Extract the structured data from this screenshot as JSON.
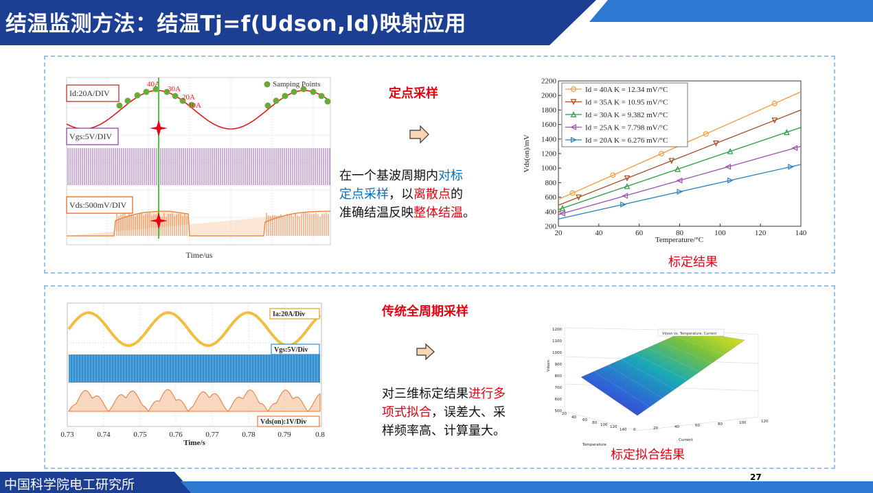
{
  "header": {
    "title": "结温监测方法：结温Tj=f(Udson,Id)映射应用",
    "bg_color": "#1c3f94",
    "accent_color": "#2d78d0"
  },
  "top_section": {
    "title": "定点采样",
    "waveform": {
      "id_label": "Id:20A/DIV",
      "vgs_label": "Vgs:5V/DIV",
      "vds_label": "Vds:500mV/DIV",
      "legend": "Samping Points",
      "annotations": [
        "40A",
        "30A",
        "20A",
        "10A"
      ],
      "xlabel": "Time/us"
    },
    "description": {
      "part1": "在一个基波周期内",
      "part2": "对标",
      "part3": "定点采样",
      "part4": "，以",
      "part5": "离散点",
      "part6": "的",
      "part7": "准确结温反映",
      "part8": "整体结温",
      "part9": "。"
    },
    "caption": "标定结果"
  },
  "bottom_section": {
    "title": "传统全周期采样",
    "waveform": {
      "ia_label": "Ia:20A/Div",
      "vgs_label": "Vgs:5V/Div",
      "vds_label": "Vds(on):1V/Div",
      "xticks": [
        "0.73",
        "0.74",
        "0.75",
        "0.76",
        "0.77",
        "0.78",
        "0.79",
        "0.8"
      ],
      "xlabel": "Time/s"
    },
    "description": {
      "part1": "对三维标定结果",
      "part2": "进行多",
      "part3": "项式拟合",
      "part4": "，误差大、采",
      "part5": "样频率高、计算量大。"
    },
    "surface": {
      "legend": "Vdson vs. Temperature, Current",
      "zlabel": "Vdson",
      "zticks": [
        "1200",
        "1100",
        "1000",
        "900",
        "800",
        "700",
        "600",
        "500"
      ],
      "temp_label": "Temperature",
      "temp_ticks": [
        "20",
        "40",
        "60",
        "80",
        "100",
        "120",
        "140"
      ],
      "current_label": "Current",
      "current_ticks": [
        "0",
        "20",
        "40",
        "60",
        "80",
        "100",
        "120"
      ]
    },
    "caption": "标定拟合结果"
  },
  "chart_data": {
    "type": "line",
    "xlabel": "Temperature/°C",
    "ylabel": "Vds(on)/mV",
    "xlim": [
      20,
      140
    ],
    "ylim": [
      200,
      2200
    ],
    "xticks": [
      20,
      40,
      60,
      80,
      100,
      120,
      140
    ],
    "yticks": [
      200,
      400,
      600,
      800,
      1000,
      1200,
      1400,
      1600,
      1800,
      2000,
      2200
    ],
    "legend_position": "top-left",
    "series": [
      {
        "name": "Id = 40A K = 12.34 mV/°C",
        "color": "#f29a3a",
        "marker": "circle",
        "x": [
          20,
          140
        ],
        "y": [
          570,
          2050
        ],
        "marker_x": [
          27,
          47,
          71,
          93,
          127
        ]
      },
      {
        "name": "Id = 35A K = 10.95 mV/°C",
        "color": "#a64b22",
        "marker": "triangle-down",
        "x": [
          20,
          140
        ],
        "y": [
          490,
          1800
        ],
        "marker_x": [
          30,
          54,
          76,
          98,
          127
        ]
      },
      {
        "name": "Id = 30A K = 9.382 mV/°C",
        "color": "#2b9a3f",
        "marker": "triangle-up",
        "x": [
          20,
          140
        ],
        "y": [
          430,
          1560
        ],
        "marker_x": [
          22,
          54,
          79,
          105,
          133
        ]
      },
      {
        "name": "Id = 25A K = 7.798 mV/°C",
        "color": "#a04fb0",
        "marker": "triangle-left",
        "x": [
          20,
          140
        ],
        "y": [
          360,
          1300
        ],
        "marker_x": [
          22,
          53,
          80,
          104,
          137
        ]
      },
      {
        "name": "Id = 20A K = 6.276 mV/°C",
        "color": "#2e7fc0",
        "marker": "triangle-right",
        "x": [
          20,
          140
        ],
        "y": [
          300,
          1050
        ],
        "marker_x": [
          52,
          80,
          105,
          135
        ]
      }
    ]
  },
  "footer": {
    "org": "中国科学院电工研究所",
    "page": "27"
  }
}
